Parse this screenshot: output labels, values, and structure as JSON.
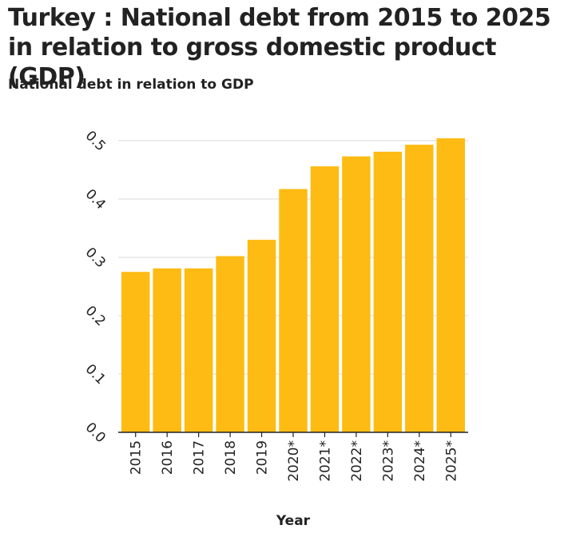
{
  "colors": {
    "bar": "#fdbb13",
    "grid": "#d9d9d9",
    "axis": "#222222"
  },
  "chart_data": {
    "type": "bar",
    "title": "Turkey : National debt from 2015 to 2025 in relation to gross domestic product (GDP)",
    "subtitle": "National debt in relation to GDP",
    "xlabel": "Year",
    "ylabel": "",
    "categories": [
      "2015",
      "2016",
      "2017",
      "2018",
      "2019",
      "2020*",
      "2021*",
      "2022*",
      "2023*",
      "2024*",
      "2025*"
    ],
    "values": [
      0.275,
      0.281,
      0.281,
      0.302,
      0.33,
      0.417,
      0.456,
      0.473,
      0.481,
      0.493,
      0.504
    ],
    "ylim": [
      0,
      0.5
    ],
    "yticks": [
      "0.0",
      "0.1",
      "0.2",
      "0.3",
      "0.4",
      "0.5"
    ],
    "grid": true
  }
}
